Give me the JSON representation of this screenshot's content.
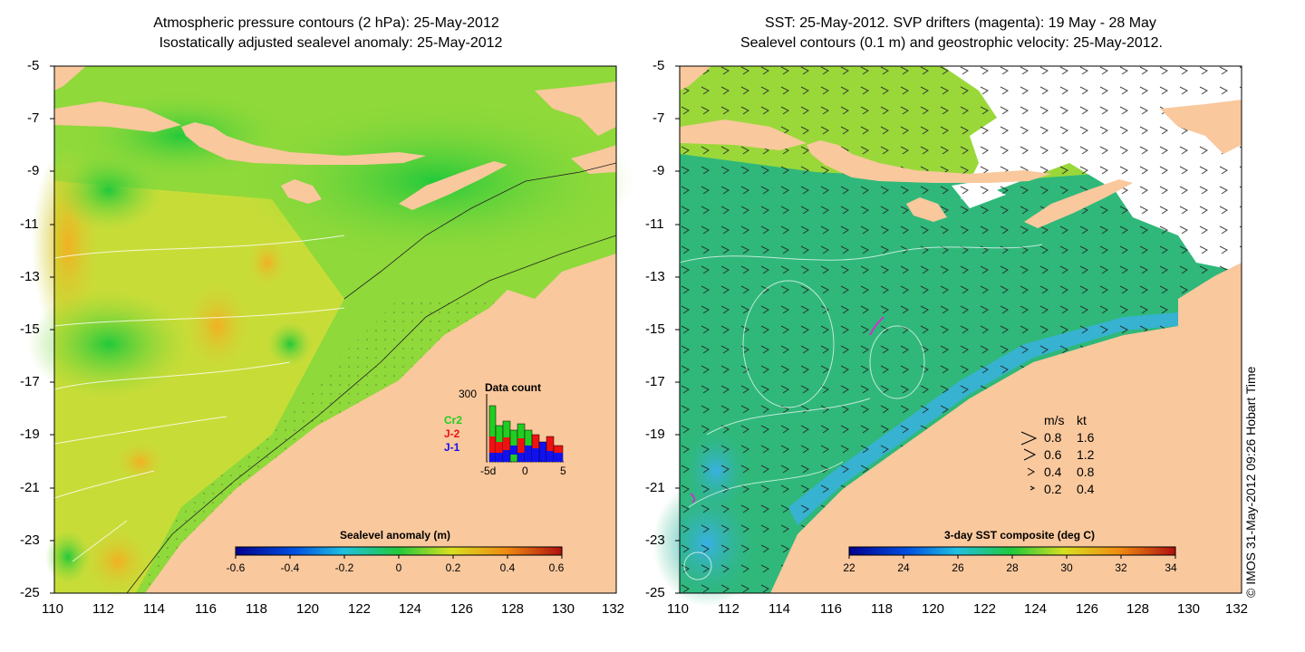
{
  "left_panel": {
    "title_line1": "Atmospheric pressure contours (2 hPa): 25-May-2012",
    "title_line2": "Isostatically adjusted sealevel anomaly: 25-May-2012",
    "colorbar": {
      "title": "Sealevel anomaly (m)",
      "ticks": [
        "-0.6",
        "-0.4",
        "-0.2",
        "0",
        "0.2",
        "0.4",
        "0.6"
      ]
    },
    "data_count": {
      "title": "Data count",
      "ymax": "300",
      "series_labels": [
        "Cr2",
        "J-2",
        "J-1"
      ],
      "series_colors": [
        "#22cc22",
        "#ee1111",
        "#1111ee"
      ],
      "x_ticks": [
        "-5d",
        "0",
        "5"
      ]
    }
  },
  "right_panel": {
    "title_line1": "SST: 25-May-2012. SVP drifters (magenta): 19 May - 28 May",
    "title_line2": "Sealevel contours (0.1 m) and geostrophic velocity: 25-May-2012.",
    "colorbar": {
      "title": "3-day SST composite (deg C)",
      "ticks": [
        "22",
        "24",
        "26",
        "28",
        "30",
        "32",
        "34"
      ]
    },
    "velocity_legend": {
      "header_ms": "m/s",
      "header_kt": "kt",
      "rows": [
        {
          "ms": "0.8",
          "kt": "1.6"
        },
        {
          "ms": "0.6",
          "kt": "1.2"
        },
        {
          "ms": "0.4",
          "kt": "0.8"
        },
        {
          "ms": "0.2",
          "kt": "0.4"
        }
      ]
    }
  },
  "axes": {
    "lat_labels": [
      "-5",
      "-7",
      "-9",
      "-11",
      "-13",
      "-15",
      "-17",
      "-19",
      "-21",
      "-23",
      "-25"
    ],
    "lon_labels": [
      "110",
      "112",
      "114",
      "116",
      "118",
      "120",
      "122",
      "124",
      "126",
      "128",
      "130",
      "132"
    ]
  },
  "credit": "© IMOS 31-May-2012 09:26 Hobart Time",
  "colors": {
    "land": "#f9c89d",
    "ocean_sla": "#8fd93a",
    "ocean_sst": "#2fb87a",
    "cloud": "#ffffff",
    "drifter": "#cc33cc"
  }
}
